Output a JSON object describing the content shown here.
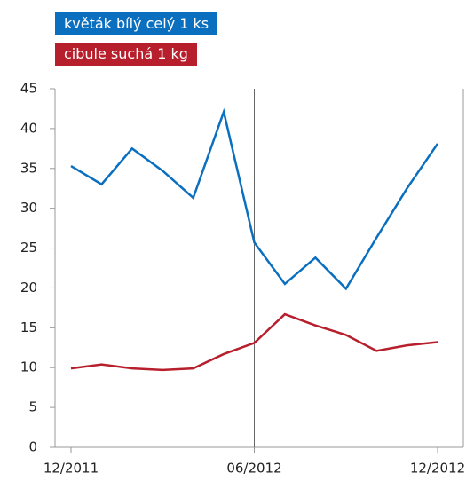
{
  "chart_data": {
    "type": "line",
    "categories": [
      "12/2011",
      null,
      null,
      null,
      null,
      null,
      "06/2012",
      null,
      null,
      null,
      null,
      null,
      "12/2012"
    ],
    "series": [
      {
        "name": "květák bílý celý 1 ks",
        "color": "#0b6fc0",
        "values": [
          35.3,
          33.0,
          37.5,
          34.7,
          31.3,
          42.1,
          25.7,
          20.5,
          23.8,
          19.9,
          26.3,
          32.5,
          38.1
        ]
      },
      {
        "name": "cibule suchá 1 kg",
        "color": "#b71f2c",
        "values": [
          9.9,
          10.4,
          9.9,
          9.7,
          9.9,
          11.7,
          13.1,
          16.7,
          15.3,
          14.1,
          12.1,
          12.8,
          13.2
        ]
      }
    ],
    "ylim": [
      0,
      45
    ],
    "yticks": [
      0,
      5,
      10,
      15,
      20,
      25,
      30,
      35,
      40,
      45
    ]
  }
}
